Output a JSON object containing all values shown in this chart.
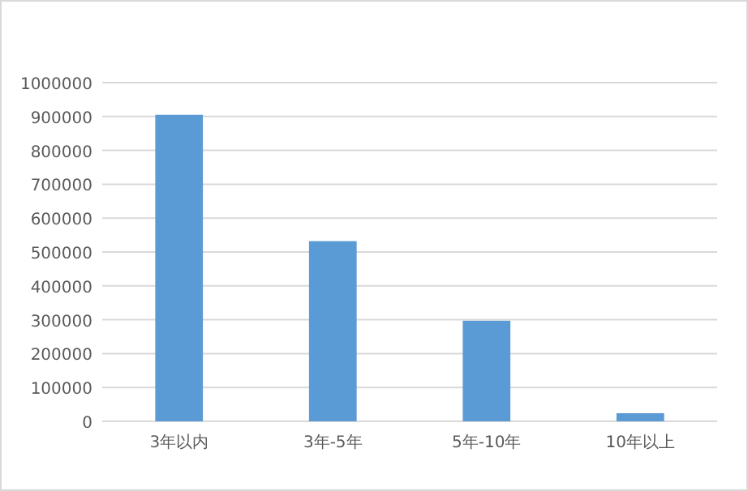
{
  "chart_data": {
    "type": "bar",
    "categories": [
      "3年以内",
      "3年-5年",
      "5年-10年",
      "10年以上"
    ],
    "values": [
      905000,
      532000,
      297000,
      24000
    ],
    "color": "#5b9bd5",
    "ylim": [
      0,
      1000000
    ],
    "yticks": [
      0,
      100000,
      200000,
      300000,
      400000,
      500000,
      600000,
      700000,
      800000,
      900000,
      1000000
    ],
    "grid": "y"
  }
}
